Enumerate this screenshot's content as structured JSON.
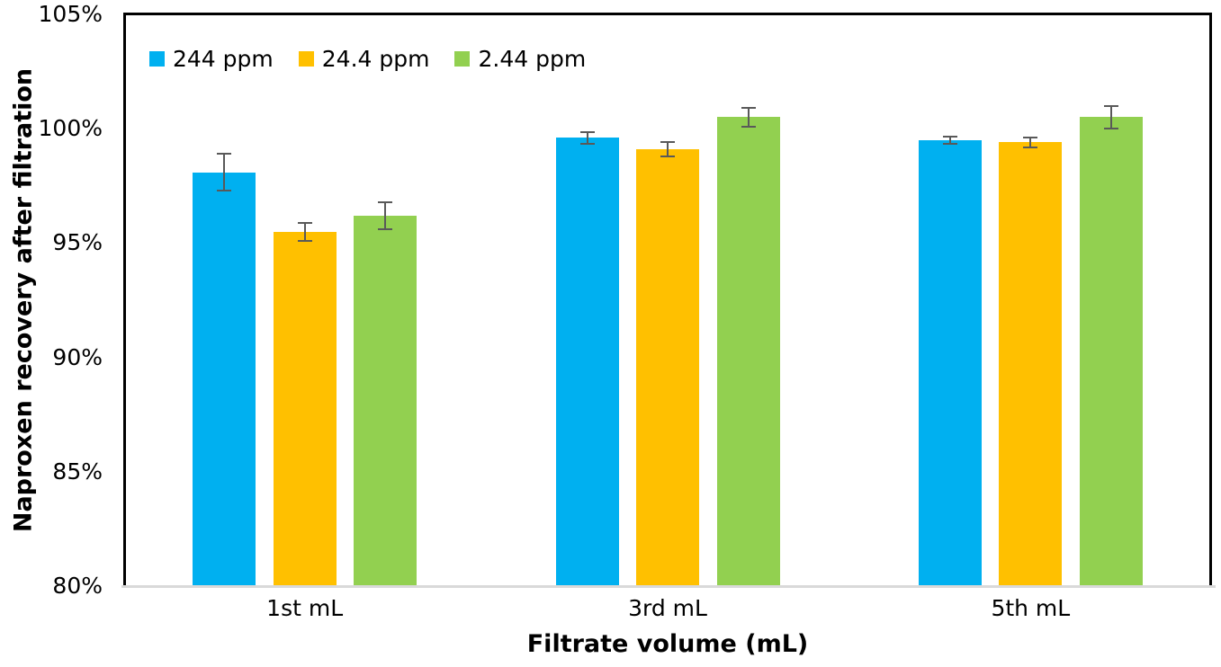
{
  "chart_data": {
    "type": "bar",
    "title": "",
    "categories": [
      "1st mL",
      "3rd mL",
      "5th mL"
    ],
    "series": [
      {
        "name": "244 ppm",
        "color": "#00B0F0",
        "values": [
          98.1,
          99.6,
          99.5
        ],
        "errors": [
          0.8,
          0.25,
          0.15
        ]
      },
      {
        "name": "24.4 ppm",
        "color": "#FFC000",
        "values": [
          95.5,
          99.1,
          99.4
        ],
        "errors": [
          0.4,
          0.3,
          0.2
        ]
      },
      {
        "name": "2.44 ppm",
        "color": "#92D050",
        "values": [
          96.2,
          100.5,
          100.5
        ],
        "errors": [
          0.6,
          0.4,
          0.5
        ]
      }
    ],
    "xlabel": "Filtrate volume (mL)",
    "ylabel": "Naproxen recovery after filtration",
    "ylim": [
      80,
      105
    ],
    "ytick_step": 5,
    "ytick_labels": [
      "80%",
      "85%",
      "90%",
      "95%",
      "100%",
      "105%"
    ],
    "ytick_format": "percent",
    "grid": false,
    "legend_position": "top-left-inside",
    "colors": {
      "error_bar": "#595959",
      "axis_border": "#000000",
      "baseline": "#D9D9D9",
      "text": "#000000",
      "background": "#FFFFFF"
    }
  }
}
